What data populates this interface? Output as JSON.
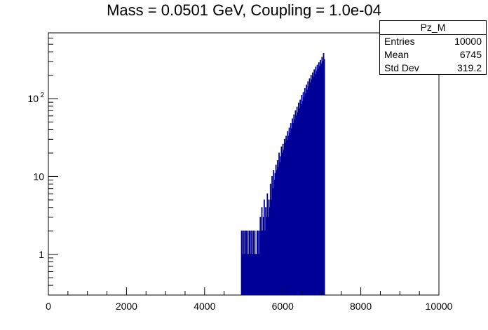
{
  "chart_data": {
    "type": "histogram",
    "title": "Mass = 0.0501 GeV, Coupling = 1.0e-04",
    "xlim": [
      0,
      10000
    ],
    "ylim": [
      0.3,
      700
    ],
    "yscale": "log",
    "x_ticks": [
      0,
      2000,
      4000,
      6000,
      8000,
      10000
    ],
    "y_ticks": [
      {
        "value": 1,
        "label": "1"
      },
      {
        "value": 10,
        "label": "10"
      },
      {
        "value": 100,
        "label": "10",
        "sup": "2"
      }
    ],
    "line_color": "#000099",
    "stats": {
      "name": "Pz_M",
      "rows": [
        {
          "label": "Entries",
          "value": "10000"
        },
        {
          "label": "Mean",
          "value": "6745"
        },
        {
          "label": "Std Dev",
          "value": "319.2"
        }
      ]
    },
    "series": [
      {
        "bin_width": 10,
        "bins": [
          [
            4940,
            2
          ],
          [
            4960,
            2
          ],
          [
            4980,
            1
          ],
          [
            5000,
            2
          ],
          [
            5020,
            1
          ],
          [
            5040,
            2
          ],
          [
            5060,
            2
          ],
          [
            5080,
            1
          ],
          [
            5100,
            2
          ],
          [
            5120,
            1
          ],
          [
            5140,
            2
          ],
          [
            5160,
            2
          ],
          [
            5180,
            1
          ],
          [
            5200,
            2
          ],
          [
            5220,
            1
          ],
          [
            5240,
            2
          ],
          [
            5260,
            1
          ],
          [
            5280,
            2
          ],
          [
            5300,
            1
          ],
          [
            5320,
            1
          ],
          [
            5340,
            2
          ],
          [
            5360,
            2
          ],
          [
            5380,
            1
          ],
          [
            5400,
            2
          ],
          [
            5420,
            3
          ],
          [
            5440,
            2
          ],
          [
            5460,
            4
          ],
          [
            5480,
            2
          ],
          [
            5500,
            3
          ],
          [
            5520,
            5
          ],
          [
            5540,
            2
          ],
          [
            5560,
            4
          ],
          [
            5580,
            3
          ],
          [
            5600,
            6
          ],
          [
            5620,
            3
          ],
          [
            5640,
            5
          ],
          [
            5660,
            4
          ],
          [
            5680,
            8
          ],
          [
            5700,
            5
          ],
          [
            5720,
            10
          ],
          [
            5740,
            7
          ],
          [
            5760,
            12
          ],
          [
            5780,
            9
          ],
          [
            5800,
            11
          ],
          [
            5820,
            14
          ],
          [
            5840,
            12
          ],
          [
            5860,
            16
          ],
          [
            5880,
            13
          ],
          [
            5900,
            20
          ],
          [
            5920,
            15
          ],
          [
            5940,
            18
          ],
          [
            5960,
            24
          ],
          [
            5980,
            20
          ],
          [
            6000,
            26
          ],
          [
            6020,
            22
          ],
          [
            6040,
            30
          ],
          [
            6060,
            27
          ],
          [
            6080,
            33
          ],
          [
            6100,
            29
          ],
          [
            6120,
            38
          ],
          [
            6140,
            33
          ],
          [
            6160,
            42
          ],
          [
            6180,
            36
          ],
          [
            6200,
            48
          ],
          [
            6220,
            41
          ],
          [
            6240,
            55
          ],
          [
            6260,
            48
          ],
          [
            6280,
            62
          ],
          [
            6300,
            54
          ],
          [
            6320,
            70
          ],
          [
            6340,
            60
          ],
          [
            6360,
            78
          ],
          [
            6380,
            66
          ],
          [
            6400,
            88
          ],
          [
            6420,
            74
          ],
          [
            6440,
            96
          ],
          [
            6460,
            84
          ],
          [
            6480,
            110
          ],
          [
            6500,
            92
          ],
          [
            6520,
            120
          ],
          [
            6540,
            104
          ],
          [
            6560,
            135
          ],
          [
            6580,
            116
          ],
          [
            6600,
            150
          ],
          [
            6620,
            128
          ],
          [
            6640,
            165
          ],
          [
            6660,
            142
          ],
          [
            6680,
            180
          ],
          [
            6700,
            160
          ],
          [
            6720,
            200
          ],
          [
            6740,
            175
          ],
          [
            6760,
            215
          ],
          [
            6780,
            190
          ],
          [
            6800,
            235
          ],
          [
            6820,
            205
          ],
          [
            6840,
            255
          ],
          [
            6860,
            225
          ],
          [
            6880,
            270
          ],
          [
            6900,
            240
          ],
          [
            6920,
            290
          ],
          [
            6940,
            260
          ],
          [
            6960,
            310
          ],
          [
            6980,
            280
          ],
          [
            7000,
            340
          ],
          [
            7020,
            300
          ],
          [
            7040,
            380
          ],
          [
            7060,
            320
          ]
        ]
      }
    ]
  }
}
